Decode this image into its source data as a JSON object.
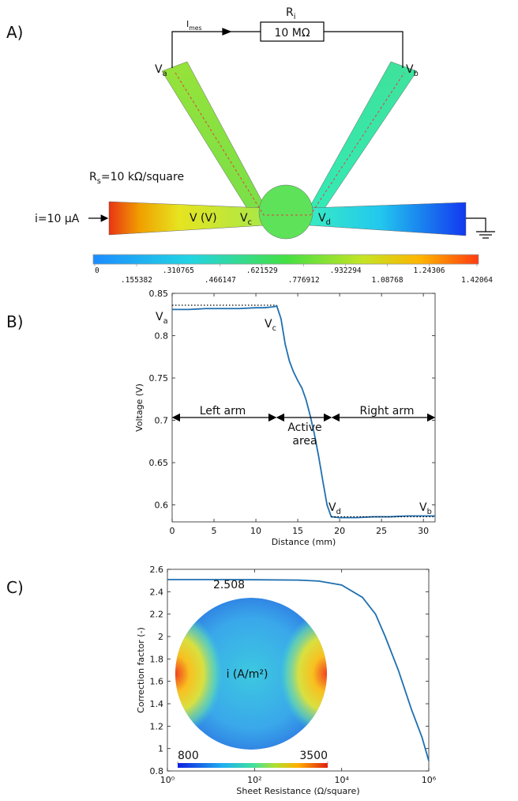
{
  "panel_labels": [
    "A)",
    "B)",
    "C)"
  ],
  "diagram": {
    "current": {
      "name": "I",
      "sub": "mes"
    },
    "resistor": {
      "name": "R",
      "sub": "i",
      "value": "10 MΩ"
    },
    "probes": [
      {
        "name": "V",
        "sub": "a"
      },
      {
        "name": "V",
        "sub": "b"
      },
      {
        "name": "V",
        "sub": "c"
      },
      {
        "name": "V",
        "sub": "d"
      }
    ],
    "sheet_resistance": {
      "name": "R",
      "sub": "s",
      "text": "=10 kΩ/square"
    },
    "source": "i=10 μA",
    "field_label": "V (V)",
    "colorbar": {
      "lim": [
        0,
        1.42064
      ],
      "ticks": [
        0,
        {
          "value": 0.155382,
          "label": ".155382"
        },
        {
          "value": 0.310765,
          "label": ".310765"
        },
        {
          "value": 0.466147,
          "label": ".466147"
        },
        {
          "value": 0.621529,
          "label": ".621529"
        },
        {
          "value": 0.776912,
          "label": ".776912"
        },
        {
          "value": 0.932294,
          "label": ".932294"
        },
        1.08768,
        1.24306,
        1.42064
      ]
    }
  },
  "chart_data": [
    {
      "type": "line",
      "xlabel": "Distance (mm)",
      "ylabel": "Voltage (V)",
      "x": [
        0,
        2,
        4,
        6,
        8,
        10,
        11,
        12,
        12.5,
        13,
        13.5,
        14,
        14.5,
        15,
        15.5,
        16,
        16.5,
        17,
        17.5,
        18,
        18.5,
        19,
        20,
        22,
        24,
        26,
        28,
        30,
        31.4
      ],
      "series": [
        {
          "color": "#1f6fb0",
          "values": [
            0.831,
            0.831,
            0.832,
            0.832,
            0.832,
            0.833,
            0.833,
            0.834,
            0.835,
            0.82,
            0.79,
            0.77,
            0.757,
            0.747,
            0.738,
            0.724,
            0.705,
            0.683,
            0.657,
            0.628,
            0.6,
            0.586,
            0.585,
            0.585,
            0.586,
            0.586,
            0.587,
            0.587,
            0.587
          ]
        }
      ],
      "xlim": [
        0,
        31.4
      ],
      "ylim": [
        0.58,
        0.85
      ],
      "xticks": [
        0,
        5,
        10,
        15,
        20,
        25,
        30
      ],
      "yticks": [
        0.6,
        0.65,
        0.7,
        0.75,
        0.8,
        0.85
      ],
      "reference_lines": [
        {
          "y": 0.836,
          "x": [
            0,
            12.5
          ]
        },
        {
          "y": 0.586,
          "x": [
            19,
            31.4
          ]
        }
      ],
      "point_labels": [
        {
          "name": "V",
          "sub": "a"
        },
        {
          "name": "V",
          "sub": "c"
        },
        {
          "name": "V",
          "sub": "d"
        },
        {
          "name": "V",
          "sub": "b"
        }
      ],
      "regions": [
        "Left arm",
        "Active",
        "area",
        "Right arm"
      ]
    },
    {
      "type": "line",
      "xlabel": "Sheet Resistance (Ω/square)",
      "ylabel": "Correction factor (-)",
      "log_x": true,
      "x": [
        1,
        10,
        100,
        1000,
        3000,
        10000,
        30000,
        60000,
        100000,
        200000,
        400000,
        700000,
        1000000
      ],
      "series": [
        {
          "color": "#1f6fb0",
          "values": [
            2.508,
            2.508,
            2.507,
            2.504,
            2.495,
            2.46,
            2.35,
            2.2,
            2.0,
            1.7,
            1.35,
            1.1,
            0.89
          ]
        }
      ],
      "xlim": [
        1,
        1000000
      ],
      "ylim": [
        0.8,
        2.6
      ],
      "xticks": [
        {
          "value": 1,
          "label": "10⁰"
        },
        {
          "value": 100,
          "label": "10²"
        },
        {
          "value": 10000,
          "label": "10⁴"
        },
        {
          "value": 1000000,
          "label": "10⁶"
        }
      ],
      "yticks": [
        0.8,
        1,
        1.2,
        1.4,
        1.6,
        1.8,
        2,
        2.2,
        2.4,
        2.6
      ],
      "plateau": 2.508,
      "inset": {
        "label": "i (A/m²)",
        "colorbar": {
          "lim": [
            800,
            3500
          ],
          "ticks": [
            800,
            3500
          ]
        }
      }
    }
  ]
}
